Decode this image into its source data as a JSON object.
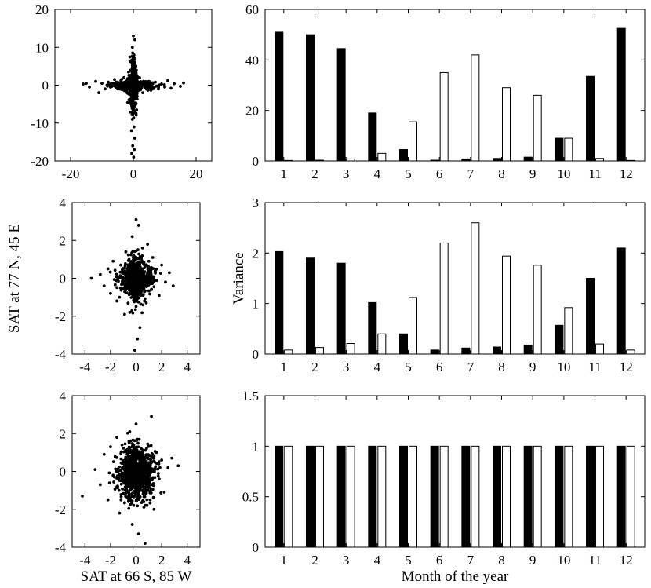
{
  "colors": {
    "black_bar": "#000000",
    "white_bar": "#ffffff",
    "axes": "#000000"
  },
  "chart_data": [
    {
      "type": "scatter",
      "panel": "top-left",
      "xlim": [
        -25,
        25
      ],
      "ylim": [
        -20,
        20
      ],
      "xticks": [
        "-20",
        "0",
        "20"
      ],
      "yticks": [
        "-20",
        "-10",
        "0",
        "10",
        "20"
      ],
      "xlabel": "",
      "ylabel": "",
      "pattern": "cross-shaped cloud of ~1000 points; long arms along both axes",
      "points": [
        [
          -16,
          0.3
        ],
        [
          -15,
          0.5
        ],
        [
          -14,
          -0.5
        ],
        [
          -12,
          1
        ],
        [
          -11,
          -2
        ],
        [
          -10,
          0.5
        ],
        [
          -9,
          -1
        ],
        [
          -8,
          0.8
        ],
        [
          -7,
          -0.3
        ],
        [
          -6,
          1.5
        ],
        [
          -5,
          -1
        ],
        [
          -4,
          0.5
        ],
        [
          -3,
          -0.8
        ],
        [
          -2,
          1.2
        ],
        [
          -1,
          -0.5
        ],
        [
          1,
          0.7
        ],
        [
          2,
          -1.2
        ],
        [
          3,
          0.5
        ],
        [
          4,
          -0.6
        ],
        [
          5,
          1
        ],
        [
          6,
          -0.4
        ],
        [
          7,
          0.8
        ],
        [
          8,
          -1
        ],
        [
          9,
          0.3
        ],
        [
          10,
          -0.5
        ],
        [
          11,
          1.2
        ],
        [
          12,
          -0.8
        ],
        [
          13,
          0.4
        ],
        [
          15,
          -0.3
        ],
        [
          16,
          0.6
        ],
        [
          0,
          13
        ],
        [
          0.5,
          12
        ],
        [
          -0.3,
          10
        ],
        [
          0.2,
          8
        ],
        [
          -0.5,
          6
        ],
        [
          0.8,
          5
        ],
        [
          -0.2,
          4
        ],
        [
          0.3,
          3
        ],
        [
          0,
          -3
        ],
        [
          -0.4,
          -5
        ],
        [
          0.5,
          -7
        ],
        [
          -0.3,
          -9
        ],
        [
          0.2,
          -11
        ],
        [
          -0.6,
          -12
        ],
        [
          0.4,
          -14
        ],
        [
          -0.2,
          -16
        ],
        [
          0.3,
          -17
        ],
        [
          -0.5,
          -18
        ],
        [
          0.1,
          -19
        ],
        [
          1,
          1
        ],
        [
          -1,
          1
        ],
        [
          2,
          2
        ],
        [
          -2,
          -2
        ],
        [
          3,
          -2
        ],
        [
          -3,
          2
        ],
        [
          1.5,
          -1.5
        ],
        [
          -1.5,
          1.8
        ],
        [
          0.5,
          0.3
        ],
        [
          -0.7,
          -0.2
        ]
      ]
    },
    {
      "type": "scatter",
      "panel": "middle-left",
      "xlim": [
        -5,
        5
      ],
      "ylim": [
        -4,
        4
      ],
      "xticks": [
        "-4",
        "-2",
        "0",
        "2",
        "4"
      ],
      "yticks": [
        "-4",
        "-2",
        "0",
        "2",
        "4"
      ],
      "xlabel": "",
      "ylabel": "SAT at 77 N, 45 E",
      "pattern": "diamond-shaped cloud",
      "points": [
        [
          -3.5,
          0
        ],
        [
          -2.8,
          0.2
        ],
        [
          -2.5,
          -0.4
        ],
        [
          -2.2,
          0.5
        ],
        [
          -2,
          -0.8
        ],
        [
          -1.8,
          0.9
        ],
        [
          -1.5,
          -1.2
        ],
        [
          -1.2,
          0.7
        ],
        [
          -1,
          -0.3
        ],
        [
          -0.8,
          1.4
        ],
        [
          -0.5,
          -1.8
        ],
        [
          -0.3,
          2.2
        ],
        [
          0,
          3.1
        ],
        [
          0.2,
          2.8
        ],
        [
          0.1,
          -3.2
        ],
        [
          -0.1,
          -3.8
        ],
        [
          0.3,
          -2.6
        ],
        [
          0.5,
          1.6
        ],
        [
          0.8,
          -1.3
        ],
        [
          1,
          0.9
        ],
        [
          1.2,
          -0.6
        ],
        [
          1.5,
          0.4
        ],
        [
          1.8,
          -0.9
        ],
        [
          2,
          0.7
        ],
        [
          2.3,
          -0.2
        ],
        [
          2.6,
          0.3
        ],
        [
          2.9,
          -0.4
        ],
        [
          0.4,
          0.2
        ],
        [
          -0.4,
          -0.5
        ],
        [
          0.6,
          -0.1
        ],
        [
          -0.6,
          0.6
        ],
        [
          0,
          0
        ],
        [
          0.9,
          1.8
        ],
        [
          -0.9,
          -1.9
        ],
        [
          1.3,
          1.1
        ],
        [
          -1.3,
          -1
        ],
        [
          0.2,
          -0.7
        ],
        [
          -0.2,
          0.9
        ]
      ]
    },
    {
      "type": "scatter",
      "panel": "bottom-left",
      "xlim": [
        -5,
        5
      ],
      "ylim": [
        -4,
        4
      ],
      "xticks": [
        "-4",
        "-2",
        "0",
        "2",
        "4"
      ],
      "yticks": [
        "-4",
        "-2",
        "0",
        "2",
        "4"
      ],
      "xlabel": "SAT at 66 S, 85 W",
      "ylabel": "",
      "pattern": "round isotropic cloud",
      "points": [
        [
          -4.2,
          -1.3
        ],
        [
          -3.2,
          0.1
        ],
        [
          -2.8,
          -0.7
        ],
        [
          -2.5,
          0.9
        ],
        [
          -2.2,
          -1.5
        ],
        [
          -2,
          1.3
        ],
        [
          -1.8,
          -0.2
        ],
        [
          -1.5,
          1.8
        ],
        [
          -1.3,
          -2.2
        ],
        [
          -1,
          0.5
        ],
        [
          -0.8,
          -1
        ],
        [
          -0.5,
          2.1
        ],
        [
          -0.3,
          -2.8
        ],
        [
          0,
          2.5
        ],
        [
          0.2,
          -3.3
        ],
        [
          0.4,
          1.2
        ],
        [
          0.6,
          -1.6
        ],
        [
          0.8,
          0.3
        ],
        [
          1,
          -0.8
        ],
        [
          1.2,
          2.9
        ],
        [
          1.4,
          -2
        ],
        [
          1.6,
          1
        ],
        [
          1.8,
          -0.4
        ],
        [
          2,
          0.6
        ],
        [
          2.2,
          -1.1
        ],
        [
          2.5,
          0.2
        ],
        [
          2.8,
          0.7
        ],
        [
          3.3,
          0.3
        ],
        [
          0.7,
          -3.8
        ],
        [
          -0.6,
          0.2
        ],
        [
          0.3,
          0.4
        ],
        [
          -0.2,
          -0.6
        ],
        [
          0.5,
          0.9
        ],
        [
          -1.1,
          1.4
        ],
        [
          1.1,
          -1.5
        ],
        [
          -0.4,
          -1.3
        ],
        [
          0.1,
          1.7
        ]
      ]
    },
    {
      "type": "bar",
      "panel": "top-right",
      "categories": [
        "1",
        "2",
        "3",
        "4",
        "5",
        "6",
        "7",
        "8",
        "9",
        "10",
        "11",
        "12"
      ],
      "ylim": [
        0,
        60
      ],
      "yticks": [
        "0",
        "20",
        "40",
        "60"
      ],
      "xlabel": "",
      "ylabel": "",
      "series": [
        {
          "name": "filled",
          "values": [
            51,
            50,
            44.5,
            19,
            4.5,
            0.3,
            0.8,
            1.0,
            1.5,
            9,
            33.5,
            52.5
          ]
        },
        {
          "name": "open",
          "values": [
            0.2,
            0.3,
            0.8,
            3,
            15.5,
            35,
            42,
            29,
            26,
            9,
            1,
            0.2
          ]
        }
      ]
    },
    {
      "type": "bar",
      "panel": "middle-right",
      "categories": [
        "1",
        "2",
        "3",
        "4",
        "5",
        "6",
        "7",
        "8",
        "9",
        "10",
        "11",
        "12"
      ],
      "ylim": [
        0,
        3
      ],
      "yticks": [
        "0",
        "1",
        "2",
        "3"
      ],
      "xlabel": "",
      "ylabel": "Variance",
      "series": [
        {
          "name": "filled",
          "values": [
            2.03,
            1.9,
            1.8,
            1.02,
            0.4,
            0.08,
            0.12,
            0.14,
            0.18,
            0.57,
            1.5,
            2.1
          ]
        },
        {
          "name": "open",
          "values": [
            0.08,
            0.13,
            0.21,
            0.4,
            1.12,
            2.2,
            2.6,
            1.94,
            1.76,
            0.92,
            0.2,
            0.08
          ]
        }
      ]
    },
    {
      "type": "bar",
      "panel": "bottom-right",
      "categories": [
        "1",
        "2",
        "3",
        "4",
        "5",
        "6",
        "7",
        "8",
        "9",
        "10",
        "11",
        "12"
      ],
      "ylim": [
        0,
        1.5
      ],
      "yticks": [
        "0",
        "0.5",
        "1",
        "1.5"
      ],
      "xlabel": "Month of the year",
      "ylabel": "",
      "series": [
        {
          "name": "filled",
          "values": [
            1,
            1,
            1,
            1,
            1,
            1,
            1,
            1,
            1,
            1,
            1,
            1
          ]
        },
        {
          "name": "open",
          "values": [
            1,
            1,
            1,
            1,
            1,
            1,
            1,
            1,
            1,
            1,
            1,
            1
          ]
        }
      ]
    }
  ]
}
